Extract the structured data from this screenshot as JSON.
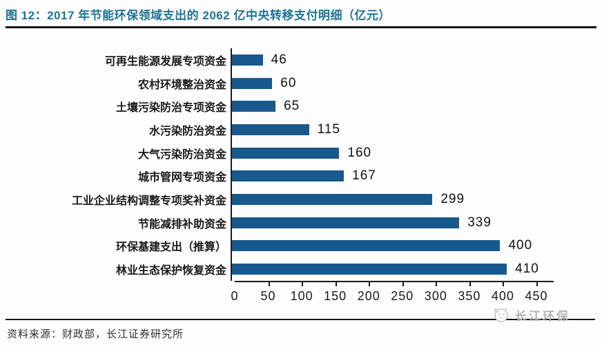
{
  "header": {
    "title": "图 12：2017 年节能环保领域支出的 2062 亿中央转移支付明细（亿元）"
  },
  "chart_data": {
    "type": "bar",
    "orientation": "horizontal",
    "title": "2017 年节能环保领域支出的 2062 亿中央转移支付明细（亿元）",
    "categories": [
      "可再生能源发展专项资金",
      "农村环境整治资金",
      "土壤污染防治专项资金",
      "水污染防治资金",
      "大气污染防治资金",
      "城市管网专项资金",
      "工业企业结构调整专项奖补资金",
      "节能减排补助资金",
      "环保基建支出（推算）",
      "林业生态保护恢复资金"
    ],
    "values": [
      46,
      60,
      65,
      115,
      160,
      167,
      299,
      339,
      400,
      410
    ],
    "xlim": [
      0,
      450
    ],
    "xticks": [
      0,
      50,
      100,
      150,
      200,
      250,
      300,
      350,
      400,
      450
    ],
    "value_labels_shown": true,
    "legend": "none",
    "grid": "off",
    "bar_color": "#17598C"
  },
  "footer": {
    "source": "资料来源：财政部，长江证券研究所",
    "logo_text": "长江环保"
  },
  "colors": {
    "title": "#1E7396",
    "bar": "#17598C",
    "axis": "#1a1a1a",
    "logo_gray": "#b5b5b5"
  }
}
